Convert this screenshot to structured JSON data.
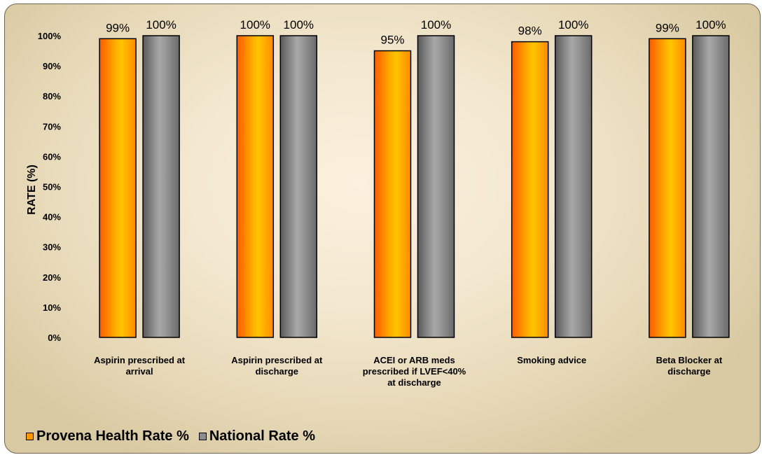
{
  "chart_data": {
    "type": "bar",
    "ylabel": "RATE (%)",
    "ylim": [
      0,
      100
    ],
    "yticks": [
      "0%",
      "10%",
      "20%",
      "30%",
      "40%",
      "50%",
      "60%",
      "70%",
      "80%",
      "90%",
      "100%"
    ],
    "categories": [
      [
        "Aspirin prescribed at",
        "arrival"
      ],
      [
        "Aspirin prescribed at",
        "discharge"
      ],
      [
        "ACEI or ARB meds",
        "prescribed if LVEF<40%",
        "at discharge"
      ],
      [
        "Smoking advice"
      ],
      [
        "Beta Blocker at",
        "discharge"
      ]
    ],
    "series": [
      {
        "name": "Provena Health Rate %",
        "values": [
          99,
          100,
          95,
          98,
          99
        ],
        "labels": [
          "99%",
          "100%",
          "95%",
          "98%",
          "99%"
        ],
        "color": "#ff9900"
      },
      {
        "name": "National Rate %",
        "values": [
          100,
          100,
          100,
          100,
          100
        ],
        "labels": [
          "100%",
          "100%",
          "100%",
          "100%",
          "100%"
        ],
        "color": "#8c8c8c"
      }
    ],
    "legend_position": "bottom-left",
    "grid": false
  },
  "legend": {
    "items": [
      {
        "label": "Provena Health Rate %",
        "color": "#ff9900"
      },
      {
        "label": "National Rate %",
        "color": "#8c8c8c"
      }
    ]
  }
}
